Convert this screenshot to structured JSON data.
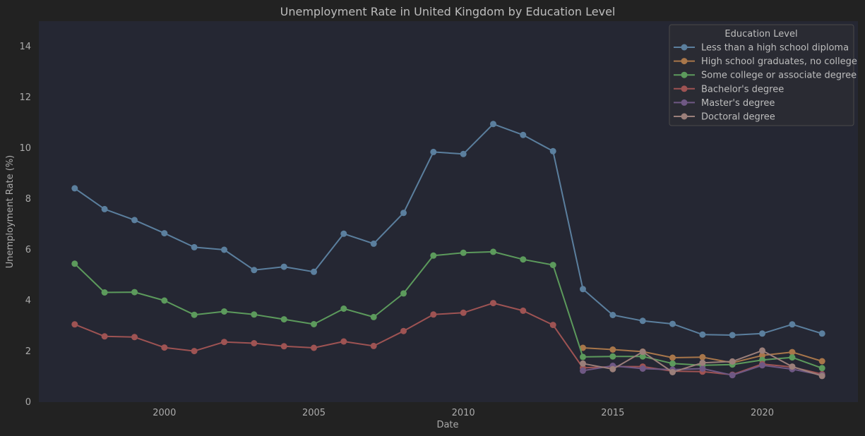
{
  "chart_data": {
    "type": "line",
    "title": "Unemployment Rate in United Kingdom by Education Level",
    "xlabel": "Date",
    "ylabel": "Unemployment Rate (%)",
    "xlim": [
      1995.8,
      2023.2
    ],
    "ylim": [
      0,
      15
    ],
    "x_ticks": [
      2000,
      2005,
      2010,
      2015,
      2020
    ],
    "y_ticks": [
      0,
      2,
      4,
      6,
      8,
      10,
      12,
      14
    ],
    "grid": false,
    "legend": {
      "title": "Education Level",
      "position": "top-right"
    },
    "series": [
      {
        "name": "Less than a high school diploma",
        "color": "#5b7f9e",
        "x": [
          1997,
          1998,
          1999,
          2000,
          2001,
          2002,
          2003,
          2004,
          2005,
          2006,
          2007,
          2008,
          2009,
          2010,
          2011,
          2012,
          2013,
          2014,
          2015,
          2016,
          2017,
          2018,
          2019,
          2020,
          2021,
          2022
        ],
        "values": [
          8.42,
          7.6,
          7.17,
          6.65,
          6.1,
          6.0,
          5.2,
          5.33,
          5.13,
          6.63,
          6.24,
          7.45,
          9.85,
          9.77,
          10.95,
          10.52,
          9.88,
          4.45,
          3.43,
          3.2,
          3.08,
          2.66,
          2.64,
          2.7,
          3.06,
          2.7
        ]
      },
      {
        "name": "High school graduates, no college",
        "color": "#a8764a",
        "x": [
          2014,
          2015,
          2016,
          2017,
          2018,
          2019,
          2020,
          2021,
          2022
        ],
        "values": [
          2.14,
          2.07,
          1.99,
          1.75,
          1.77,
          1.55,
          1.84,
          1.97,
          1.61
        ]
      },
      {
        "name": "Some college or associate degree",
        "color": "#5c9a5c",
        "x": [
          1997,
          1998,
          1999,
          2000,
          2001,
          2002,
          2003,
          2004,
          2005,
          2006,
          2007,
          2008,
          2009,
          2010,
          2011,
          2012,
          2013,
          2014,
          2015,
          2016,
          2017,
          2018,
          2019,
          2020,
          2021,
          2022
        ],
        "values": [
          5.45,
          4.32,
          4.33,
          4.0,
          3.44,
          3.57,
          3.45,
          3.26,
          3.07,
          3.68,
          3.35,
          4.28,
          5.77,
          5.88,
          5.92,
          5.62,
          5.4,
          1.78,
          1.8,
          1.8,
          1.52,
          1.45,
          1.48,
          1.66,
          1.76,
          1.34
        ]
      },
      {
        "name": "Bachelor's degree",
        "color": "#9e5353",
        "x": [
          1997,
          1998,
          1999,
          2000,
          2001,
          2002,
          2003,
          2004,
          2005,
          2006,
          2007,
          2008,
          2009,
          2010,
          2011,
          2012,
          2013,
          2014,
          2015,
          2016,
          2017,
          2018,
          2019,
          2020,
          2021,
          2022
        ],
        "values": [
          3.06,
          2.59,
          2.56,
          2.15,
          2.01,
          2.37,
          2.32,
          2.2,
          2.14,
          2.39,
          2.21,
          2.8,
          3.45,
          3.52,
          3.9,
          3.6,
          3.04,
          1.35,
          1.4,
          1.4,
          1.22,
          1.2,
          1.08,
          1.5,
          1.38,
          1.1
        ]
      },
      {
        "name": "Master's degree",
        "color": "#6f5884",
        "x": [
          2014,
          2015,
          2016,
          2017,
          2018,
          2019,
          2020,
          2021,
          2022
        ],
        "values": [
          1.24,
          1.43,
          1.32,
          1.28,
          1.32,
          1.06,
          1.45,
          1.3,
          1.06
        ]
      },
      {
        "name": "Doctoral degree",
        "color": "#9b7f7a",
        "x": [
          2014,
          2015,
          2016,
          2017,
          2018,
          2019,
          2020,
          2021,
          2022
        ],
        "values": [
          1.52,
          1.3,
          1.98,
          1.18,
          1.55,
          1.6,
          2.03,
          1.4,
          1.03
        ]
      }
    ]
  }
}
